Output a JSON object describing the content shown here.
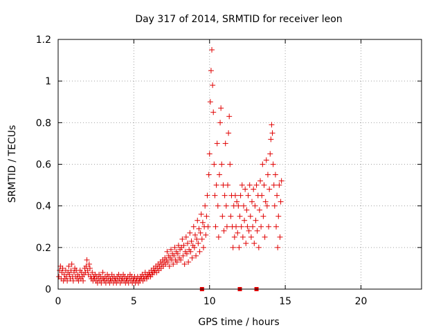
{
  "chart_data": {
    "type": "scatter",
    "title": "Day 317 of 2014, SRMTID for receiver leon",
    "xlabel": "GPS time / hours",
    "ylabel": "SRMTID / TECUs",
    "xlim": [
      0,
      24
    ],
    "ylim": [
      0,
      1.2
    ],
    "x_ticks": [
      0,
      5,
      10,
      15,
      20
    ],
    "x_tick_labels": [
      "0",
      "5",
      "10",
      "15",
      "20"
    ],
    "y_ticks": [
      0,
      0.2,
      0.4,
      0.6,
      0.8,
      1.0,
      1.2
    ],
    "y_tick_labels": [
      "0",
      "0.2",
      "0.4",
      "0.6",
      "0.8",
      "1",
      "1.2"
    ],
    "grid": true,
    "marker": "plus",
    "color": "#e00000",
    "series": [
      {
        "name": "SRMTID",
        "points": [
          [
            0.05,
            0.06
          ],
          [
            0.1,
            0.09
          ],
          [
            0.15,
            0.11
          ],
          [
            0.2,
            0.05
          ],
          [
            0.25,
            0.08
          ],
          [
            0.3,
            0.1
          ],
          [
            0.35,
            0.04
          ],
          [
            0.4,
            0.07
          ],
          [
            0.45,
            0.05
          ],
          [
            0.5,
            0.09
          ],
          [
            0.55,
            0.06
          ],
          [
            0.6,
            0.04
          ],
          [
            0.65,
            0.08
          ],
          [
            0.7,
            0.11
          ],
          [
            0.75,
            0.07
          ],
          [
            0.8,
            0.05
          ],
          [
            0.85,
            0.09
          ],
          [
            0.9,
            0.12
          ],
          [
            0.95,
            0.06
          ],
          [
            1.0,
            0.04
          ],
          [
            1.05,
            0.08
          ],
          [
            1.1,
            0.1
          ],
          [
            1.15,
            0.06
          ],
          [
            1.2,
            0.09
          ],
          [
            1.25,
            0.05
          ],
          [
            1.3,
            0.07
          ],
          [
            1.35,
            0.04
          ],
          [
            1.4,
            0.06
          ],
          [
            1.45,
            0.09
          ],
          [
            1.5,
            0.05
          ],
          [
            1.55,
            0.08
          ],
          [
            1.6,
            0.06
          ],
          [
            1.65,
            0.04
          ],
          [
            1.7,
            0.07
          ],
          [
            1.75,
            0.1
          ],
          [
            1.8,
            0.08
          ],
          [
            1.85,
            0.11
          ],
          [
            1.9,
            0.14
          ],
          [
            1.95,
            0.09
          ],
          [
            2.0,
            0.07
          ],
          [
            2.05,
            0.12
          ],
          [
            2.1,
            0.1
          ],
          [
            2.15,
            0.06
          ],
          [
            2.2,
            0.05
          ],
          [
            2.25,
            0.08
          ],
          [
            2.3,
            0.04
          ],
          [
            2.35,
            0.06
          ],
          [
            2.4,
            0.05
          ],
          [
            2.45,
            0.07
          ],
          [
            2.5,
            0.04
          ],
          [
            2.55,
            0.06
          ],
          [
            2.6,
            0.03
          ],
          [
            2.65,
            0.05
          ],
          [
            2.7,
            0.07
          ],
          [
            2.75,
            0.04
          ],
          [
            2.8,
            0.06
          ],
          [
            2.85,
            0.03
          ],
          [
            2.9,
            0.05
          ],
          [
            2.95,
            0.08
          ],
          [
            3.0,
            0.05
          ],
          [
            3.05,
            0.04
          ],
          [
            3.1,
            0.06
          ],
          [
            3.15,
            0.03
          ],
          [
            3.2,
            0.05
          ],
          [
            3.25,
            0.07
          ],
          [
            3.3,
            0.04
          ],
          [
            3.35,
            0.06
          ],
          [
            3.4,
            0.03
          ],
          [
            3.45,
            0.05
          ],
          [
            3.5,
            0.04
          ],
          [
            3.55,
            0.07
          ],
          [
            3.6,
            0.05
          ],
          [
            3.65,
            0.03
          ],
          [
            3.7,
            0.06
          ],
          [
            3.75,
            0.04
          ],
          [
            3.8,
            0.05
          ],
          [
            3.85,
            0.03
          ],
          [
            3.9,
            0.06
          ],
          [
            3.95,
            0.04
          ],
          [
            4.0,
            0.07
          ],
          [
            4.05,
            0.05
          ],
          [
            4.1,
            0.03
          ],
          [
            4.15,
            0.06
          ],
          [
            4.2,
            0.04
          ],
          [
            4.25,
            0.05
          ],
          [
            4.3,
            0.07
          ],
          [
            4.35,
            0.04
          ],
          [
            4.4,
            0.06
          ],
          [
            4.45,
            0.03
          ],
          [
            4.5,
            0.05
          ],
          [
            4.55,
            0.04
          ],
          [
            4.6,
            0.06
          ],
          [
            4.65,
            0.03
          ],
          [
            4.7,
            0.05
          ],
          [
            4.75,
            0.07
          ],
          [
            4.8,
            0.04
          ],
          [
            4.85,
            0.06
          ],
          [
            4.9,
            0.03
          ],
          [
            4.95,
            0.05
          ],
          [
            5.0,
            0.04
          ],
          [
            5.05,
            0.06
          ],
          [
            5.1,
            0.03
          ],
          [
            5.15,
            0.05
          ],
          [
            5.2,
            0.04
          ],
          [
            5.25,
            0.06
          ],
          [
            5.3,
            0.03
          ],
          [
            5.35,
            0.05
          ],
          [
            5.4,
            0.04
          ],
          [
            5.45,
            0.06
          ],
          [
            5.5,
            0.05
          ],
          [
            5.55,
            0.07
          ],
          [
            5.6,
            0.04
          ],
          [
            5.65,
            0.06
          ],
          [
            5.7,
            0.05
          ],
          [
            5.75,
            0.08
          ],
          [
            5.8,
            0.06
          ],
          [
            5.85,
            0.05
          ],
          [
            5.9,
            0.07
          ],
          [
            5.95,
            0.06
          ],
          [
            6.0,
            0.08
          ],
          [
            6.05,
            0.07
          ],
          [
            6.1,
            0.06
          ],
          [
            6.15,
            0.09
          ],
          [
            6.2,
            0.07
          ],
          [
            6.25,
            0.08
          ],
          [
            6.3,
            0.1
          ],
          [
            6.35,
            0.08
          ],
          [
            6.4,
            0.09
          ],
          [
            6.45,
            0.11
          ],
          [
            6.5,
            0.08
          ],
          [
            6.55,
            0.1
          ],
          [
            6.6,
            0.12
          ],
          [
            6.65,
            0.09
          ],
          [
            6.7,
            0.11
          ],
          [
            6.75,
            0.13
          ],
          [
            6.8,
            0.1
          ],
          [
            6.85,
            0.12
          ],
          [
            6.9,
            0.14
          ],
          [
            6.95,
            0.11
          ],
          [
            7.0,
            0.13
          ],
          [
            7.05,
            0.15
          ],
          [
            7.1,
            0.12
          ],
          [
            7.15,
            0.14
          ],
          [
            7.2,
            0.18
          ],
          [
            7.25,
            0.13
          ],
          [
            7.3,
            0.16
          ],
          [
            7.35,
            0.11
          ],
          [
            7.4,
            0.15
          ],
          [
            7.45,
            0.19
          ],
          [
            7.5,
            0.14
          ],
          [
            7.55,
            0.17
          ],
          [
            7.6,
            0.12
          ],
          [
            7.65,
            0.16
          ],
          [
            7.7,
            0.2
          ],
          [
            7.75,
            0.14
          ],
          [
            7.8,
            0.18
          ],
          [
            7.85,
            0.13
          ],
          [
            7.9,
            0.17
          ],
          [
            7.95,
            0.21
          ],
          [
            8.0,
            0.15
          ],
          [
            8.05,
            0.19
          ],
          [
            8.1,
            0.14
          ],
          [
            8.15,
            0.2
          ],
          [
            8.2,
            0.24
          ],
          [
            8.25,
            0.16
          ],
          [
            8.3,
            0.21
          ],
          [
            8.35,
            0.12
          ],
          [
            8.4,
            0.18
          ],
          [
            8.45,
            0.25
          ],
          [
            8.5,
            0.17
          ],
          [
            8.55,
            0.22
          ],
          [
            8.6,
            0.13
          ],
          [
            8.65,
            0.19
          ],
          [
            8.7,
            0.27
          ],
          [
            8.75,
            0.18
          ],
          [
            8.8,
            0.23
          ],
          [
            8.85,
            0.15
          ],
          [
            8.9,
            0.21
          ],
          [
            8.95,
            0.3
          ],
          [
            9.0,
            0.2
          ],
          [
            9.05,
            0.26
          ],
          [
            9.1,
            0.16
          ],
          [
            9.15,
            0.24
          ],
          [
            9.2,
            0.33
          ],
          [
            9.25,
            0.22
          ],
          [
            9.3,
            0.29
          ],
          [
            9.35,
            0.18
          ],
          [
            9.4,
            0.27
          ],
          [
            9.45,
            0.36
          ],
          [
            9.5,
            0.24
          ],
          [
            9.55,
            0.32
          ],
          [
            9.6,
            0.2
          ],
          [
            9.65,
            0.3
          ],
          [
            9.7,
            0.4
          ],
          [
            9.75,
            0.26
          ],
          [
            9.8,
            0.35
          ],
          [
            9.85,
            0.45
          ],
          [
            9.9,
            0.3
          ],
          [
            9.95,
            0.55
          ],
          [
            10.0,
            0.65
          ],
          [
            10.05,
            0.9
          ],
          [
            10.1,
            1.05
          ],
          [
            10.15,
            1.15
          ],
          [
            10.2,
            0.98
          ],
          [
            10.25,
            0.85
          ],
          [
            10.3,
            0.6
          ],
          [
            10.35,
            0.45
          ],
          [
            10.4,
            0.3
          ],
          [
            10.45,
            0.5
          ],
          [
            10.5,
            0.7
          ],
          [
            10.55,
            0.4
          ],
          [
            10.6,
            0.25
          ],
          [
            10.65,
            0.55
          ],
          [
            10.7,
            0.8
          ],
          [
            10.75,
            0.87
          ],
          [
            10.8,
            0.6
          ],
          [
            10.85,
            0.35
          ],
          [
            10.9,
            0.5
          ],
          [
            10.95,
            0.28
          ],
          [
            11.0,
            0.45
          ],
          [
            11.05,
            0.7
          ],
          [
            11.1,
            0.4
          ],
          [
            11.15,
            0.3
          ],
          [
            11.2,
            0.5
          ],
          [
            11.25,
            0.75
          ],
          [
            11.3,
            0.83
          ],
          [
            11.35,
            0.6
          ],
          [
            11.4,
            0.35
          ],
          [
            11.45,
            0.45
          ],
          [
            11.5,
            0.3
          ],
          [
            11.55,
            0.2
          ],
          [
            11.6,
            0.4
          ],
          [
            11.65,
            0.25
          ],
          [
            11.7,
            0.45
          ],
          [
            11.75,
            0.3
          ],
          [
            11.8,
            0.42
          ],
          [
            11.85,
            0.27
          ],
          [
            11.9,
            0.4
          ],
          [
            11.95,
            0.2
          ],
          [
            12.0,
            0.35
          ],
          [
            12.05,
            0.45
          ],
          [
            12.1,
            0.3
          ],
          [
            12.15,
            0.5
          ],
          [
            12.2,
            0.25
          ],
          [
            12.25,
            0.4
          ],
          [
            12.3,
            0.33
          ],
          [
            12.35,
            0.48
          ],
          [
            12.4,
            0.22
          ],
          [
            12.45,
            0.38
          ],
          [
            12.5,
            0.3
          ],
          [
            12.55,
            0.45
          ],
          [
            12.6,
            0.28
          ],
          [
            12.65,
            0.5
          ],
          [
            12.7,
            0.35
          ],
          [
            12.75,
            0.25
          ],
          [
            12.8,
            0.42
          ],
          [
            12.85,
            0.3
          ],
          [
            12.9,
            0.48
          ],
          [
            12.95,
            0.22
          ],
          [
            13.0,
            0.4
          ],
          [
            13.05,
            0.33
          ],
          [
            13.1,
            0.5
          ],
          [
            13.15,
            0.28
          ],
          [
            13.2,
            0.45
          ],
          [
            13.25,
            0.2
          ],
          [
            13.3,
            0.38
          ],
          [
            13.35,
            0.52
          ],
          [
            13.4,
            0.3
          ],
          [
            13.45,
            0.45
          ],
          [
            13.5,
            0.6
          ],
          [
            13.55,
            0.35
          ],
          [
            13.6,
            0.5
          ],
          [
            13.65,
            0.25
          ],
          [
            13.7,
            0.42
          ],
          [
            13.75,
            0.62
          ],
          [
            13.8,
            0.4
          ],
          [
            13.85,
            0.55
          ],
          [
            13.9,
            0.3
          ],
          [
            13.95,
            0.48
          ],
          [
            14.0,
            0.65
          ],
          [
            14.05,
            0.72
          ],
          [
            14.1,
            0.79
          ],
          [
            14.15,
            0.75
          ],
          [
            14.2,
            0.6
          ],
          [
            14.25,
            0.5
          ],
          [
            14.3,
            0.4
          ],
          [
            14.35,
            0.55
          ],
          [
            14.4,
            0.3
          ],
          [
            14.45,
            0.45
          ],
          [
            14.5,
            0.2
          ],
          [
            14.55,
            0.35
          ],
          [
            14.6,
            0.5
          ],
          [
            14.65,
            0.25
          ],
          [
            14.7,
            0.42
          ],
          [
            14.75,
            0.52
          ]
        ]
      }
    ],
    "baseline_markers_x": [
      9.5,
      12.0,
      13.1
    ]
  }
}
